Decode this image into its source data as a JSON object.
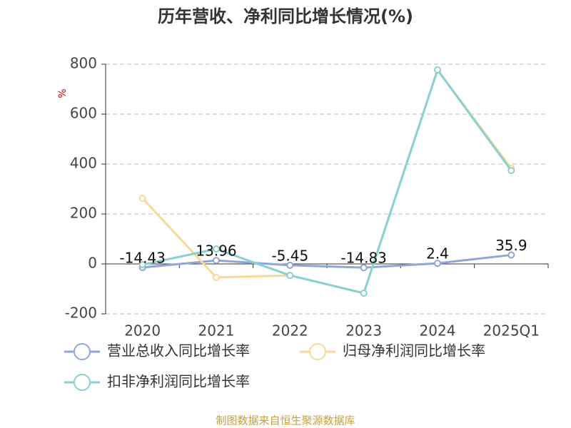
{
  "chart_data": {
    "type": "line",
    "title": "历年营收、净利同比增长情况(%)",
    "y_label": "%",
    "categories": [
      "2020",
      "2021",
      "2022",
      "2023",
      "2024",
      "2025Q1"
    ],
    "series": [
      {
        "name": "营业总收入同比增长率",
        "color": "#8fa6d6",
        "values": [
          -14.43,
          13.96,
          -5.45,
          -14.83,
          2.4,
          35.9
        ]
      },
      {
        "name": "归母净利润同比增长率",
        "color": "#f8d99a",
        "values": [
          263,
          -54,
          -46,
          -117,
          777,
          383
        ]
      },
      {
        "name": "扣非净利润同比增长率",
        "color": "#89d0d0",
        "values": [
          -3,
          60,
          -46,
          -117,
          777,
          374
        ]
      }
    ],
    "ylim": [
      -200,
      800
    ],
    "yticks": [
      -200,
      0,
      200,
      400,
      600,
      800
    ],
    "grid": true,
    "source": "制图数据来自恒生聚源数据库"
  }
}
